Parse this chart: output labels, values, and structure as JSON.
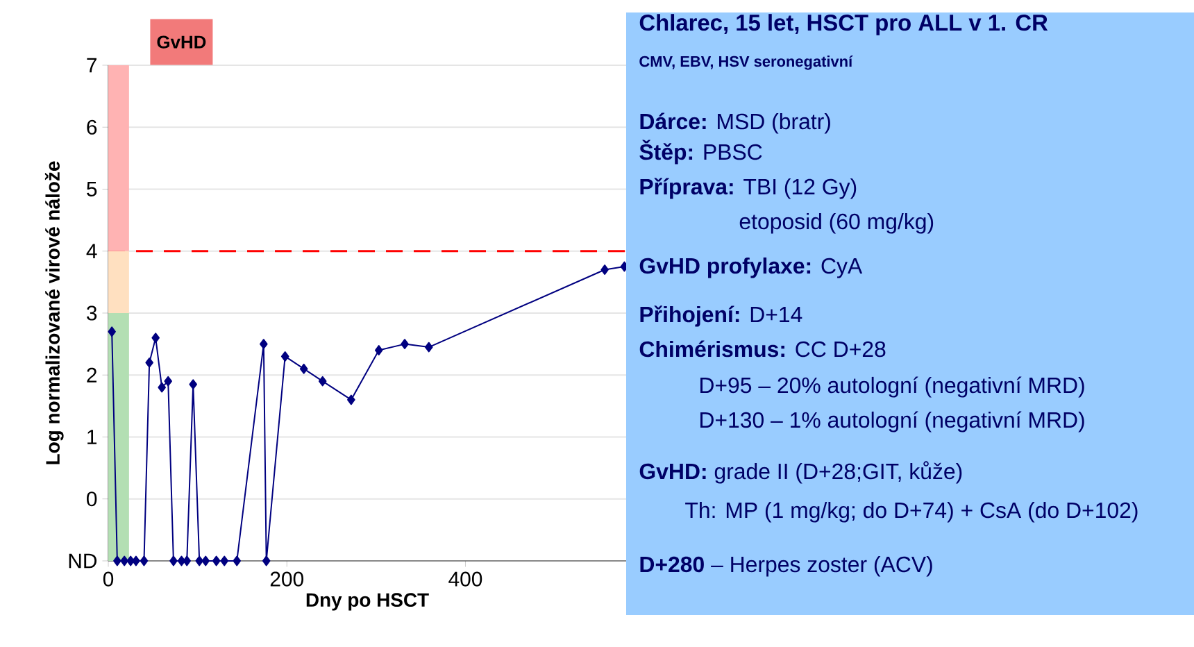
{
  "chart_data": {
    "type": "line",
    "xlabel": "Dny po HSCT",
    "ylabel": "Log normalizované virové nálože",
    "x": [
      4,
      10,
      18,
      25,
      31,
      40,
      46,
      53,
      60,
      67,
      73,
      82,
      88,
      95,
      102,
      109,
      121,
      130,
      144,
      174,
      177,
      198,
      219,
      240,
      272,
      303,
      332,
      359,
      556,
      578
    ],
    "values": [
      2.7,
      -1,
      -1,
      -1,
      -1,
      -1,
      2.2,
      2.6,
      1.8,
      1.9,
      -1,
      -1,
      -1,
      1.85,
      -1,
      -1,
      -1,
      -1,
      -1,
      2.5,
      -1,
      2.3,
      2.1,
      1.9,
      1.6,
      2.4,
      2.5,
      2.45,
      3.7,
      3.75
    ],
    "color": "#000080",
    "marker": "diamond",
    "line_style": "solid",
    "xlim": [
      0,
      580
    ],
    "ylim": [
      -1,
      7
    ],
    "xticks": [
      0,
      200,
      400
    ],
    "yticks": [
      {
        "value": -1,
        "label": "ND"
      },
      0,
      1,
      2,
      3,
      4,
      5,
      6,
      7
    ],
    "grid": "y",
    "ref_lines": [
      {
        "axis": "y",
        "value": 4,
        "color": "#ff0000",
        "line_style": "dashed"
      }
    ],
    "bands": [
      {
        "axis": "y",
        "from": -1,
        "to": 3,
        "color": "#b3dfb3"
      },
      {
        "axis": "y",
        "from": 3,
        "to": 4,
        "color": "#ffe0c0"
      },
      {
        "axis": "y",
        "from": 4,
        "to": 7,
        "color": "#ffb3b3"
      }
    ],
    "annotations": [
      "GvHD",
      "Chlarec, 15 let, HSCT pro ALL v 1. CR",
      "CMV, EBV, HSV seronegativní",
      "**Dárce:** MSD (bratr)",
      "**Štěp:** PBSC",
      "**Příprava:** TBI (12 Gy)",
      "etoposid (60 mg/kg)",
      "**GvHD profylaxe:** CyA",
      "**Přihojení:** D+14",
      "**Chimérismus:** CC D+28",
      "D+95 – 20% autologní (negativní MRD)",
      "D+130 – 1% autologní (negativní MRD)",
      "**GvHD:** grade II (D+28;GIT, kůže)",
      "Th: MP (1 mg/kg; do D+74) + CsA (do D+102)",
      "**D+280** – Herpes zoster (ACV)"
    ]
  }
}
